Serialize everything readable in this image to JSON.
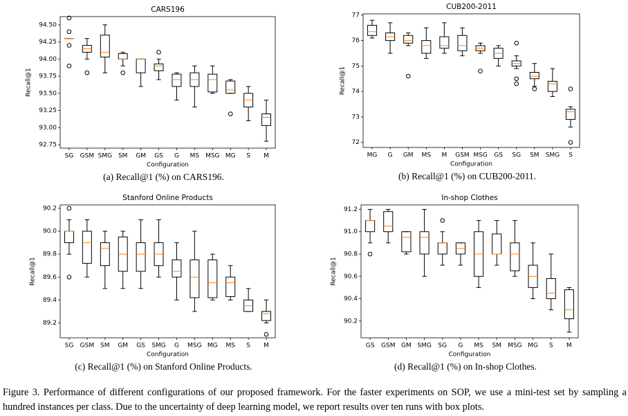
{
  "chart_data": [
    {
      "type": "box",
      "title": "CARS196",
      "ylabel": "Recall@1",
      "xlabel": "Configuration",
      "caption": "(a) Recall@1 (%) on CARS196.",
      "box_color": "#000000",
      "median_color": "#ff7f0e",
      "ylim": [
        92.7,
        94.62
      ],
      "yticks": [
        92.75,
        {
          "value": 93,
          "label": "93.00"
        },
        93.25,
        {
          "value": 93.5,
          "label": "93.50"
        },
        93.75,
        {
          "value": 94,
          "label": "94.00"
        },
        94.25,
        {
          "value": 94.5,
          "label": "94.50"
        }
      ],
      "categories": [
        "SG",
        "GSM",
        "SMG",
        "SM",
        "GM",
        "GS",
        "G",
        "MS",
        "MSG",
        "MG",
        "S",
        "M"
      ],
      "boxes": [
        {
          "whislo": 94.3,
          "q1": 94.3,
          "med": 94.3,
          "q3": 94.3,
          "whishi": 94.3,
          "fliers": [
            94.6,
            94.4,
            94.2,
            93.9
          ]
        },
        {
          "whislo": 94.0,
          "q1": 94.1,
          "med": 94.15,
          "q3": 94.2,
          "whishi": 94.3,
          "fliers": [
            93.8
          ]
        },
        {
          "whislo": 93.8,
          "q1": 94.03,
          "med": 94.1,
          "q3": 94.35,
          "whishi": 94.5,
          "fliers": []
        },
        {
          "whislo": 93.9,
          "q1": 94.0,
          "med": 94.0,
          "q3": 94.08,
          "whishi": 94.1,
          "fliers": [
            93.8
          ]
        },
        {
          "whislo": 93.6,
          "q1": 93.8,
          "med": 94.0,
          "q3": 94.0,
          "whishi": 94.0,
          "fliers": []
        },
        {
          "whislo": 93.7,
          "q1": 93.83,
          "med": 93.9,
          "q3": 93.93,
          "whishi": 94.0,
          "fliers": [
            94.1
          ]
        },
        {
          "whislo": 93.4,
          "q1": 93.6,
          "med": 93.7,
          "q3": 93.78,
          "whishi": 93.8,
          "fliers": []
        },
        {
          "whislo": 93.3,
          "q1": 93.6,
          "med": 93.7,
          "q3": 93.8,
          "whishi": 93.9,
          "fliers": []
        },
        {
          "whislo": 93.5,
          "q1": 93.52,
          "med": 93.7,
          "q3": 93.78,
          "whishi": 93.9,
          "fliers": []
        },
        {
          "whislo": 93.5,
          "q1": 93.5,
          "med": 93.55,
          "q3": 93.68,
          "whishi": 93.7,
          "fliers": [
            93.2
          ]
        },
        {
          "whislo": 93.1,
          "q1": 93.3,
          "med": 93.4,
          "q3": 93.5,
          "whishi": 93.6,
          "fliers": []
        },
        {
          "whislo": 92.8,
          "q1": 93.03,
          "med": 93.15,
          "q3": 93.2,
          "whishi": 93.4,
          "fliers": []
        }
      ]
    },
    {
      "type": "box",
      "title": "CUB200-2011",
      "ylabel": "Recall@1",
      "xlabel": "Configuration",
      "caption": "(b) Recall@1 (%) on CUB200-2011.",
      "box_color": "#000000",
      "median_color": "#ff7f0e",
      "ylim": [
        71.8,
        77.05
      ],
      "yticks": [
        72,
        73,
        74,
        75,
        76,
        77
      ],
      "categories": [
        "MG",
        "G",
        "GM",
        "MS",
        "M",
        "GSM",
        "MSG",
        "GS",
        "SG",
        "SM",
        "SMG",
        "S"
      ],
      "boxes": [
        {
          "whislo": 76.1,
          "q1": 76.2,
          "med": 76.35,
          "q3": 76.6,
          "whishi": 76.8,
          "fliers": []
        },
        {
          "whislo": 75.5,
          "q1": 76.0,
          "med": 76.15,
          "q3": 76.3,
          "whishi": 76.7,
          "fliers": []
        },
        {
          "whislo": 75.8,
          "q1": 75.9,
          "med": 76.0,
          "q3": 76.2,
          "whishi": 76.3,
          "fliers": [
            74.6
          ]
        },
        {
          "whislo": 75.3,
          "q1": 75.5,
          "med": 75.8,
          "q3": 76.0,
          "whishi": 76.5,
          "fliers": []
        },
        {
          "whislo": 75.5,
          "q1": 75.7,
          "med": 75.8,
          "q3": 76.15,
          "whishi": 76.7,
          "fliers": []
        },
        {
          "whislo": 75.4,
          "q1": 75.6,
          "med": 75.8,
          "q3": 76.2,
          "whishi": 76.5,
          "fliers": []
        },
        {
          "whislo": 75.5,
          "q1": 75.6,
          "med": 75.7,
          "q3": 75.8,
          "whishi": 75.9,
          "fliers": [
            74.8
          ]
        },
        {
          "whislo": 75.0,
          "q1": 75.3,
          "med": 75.5,
          "q3": 75.7,
          "whishi": 75.8,
          "fliers": []
        },
        {
          "whislo": 74.9,
          "q1": 75.0,
          "med": 75.1,
          "q3": 75.2,
          "whishi": 75.4,
          "fliers": [
            75.9,
            74.5,
            74.3
          ]
        },
        {
          "whislo": 74.2,
          "q1": 74.5,
          "med": 74.6,
          "q3": 74.75,
          "whishi": 75.1,
          "fliers": [
            74.1
          ]
        },
        {
          "whislo": 73.8,
          "q1": 74.0,
          "med": 74.3,
          "q3": 74.4,
          "whishi": 74.9,
          "fliers": []
        },
        {
          "whislo": 72.6,
          "q1": 72.9,
          "med": 73.2,
          "q3": 73.3,
          "whishi": 73.4,
          "fliers": [
            74.1,
            72.0
          ]
        }
      ]
    },
    {
      "type": "box",
      "title": "Stanford Online Products",
      "ylabel": "Recall@1",
      "xlabel": "Configuration",
      "caption": "(c) Recall@1 (%) on Stanford Online Products.",
      "box_color": "#000000",
      "median_color": "#ff7f0e",
      "ylim": [
        89.07,
        90.23
      ],
      "yticks": [
        89.2,
        89.4,
        89.6,
        89.8,
        {
          "value": 90,
          "label": "90.0"
        },
        90.2
      ],
      "categories": [
        "SG",
        "GSM",
        "SM",
        "GM",
        "GS",
        "SMG",
        "G",
        "MSG",
        "MG",
        "MS",
        "S",
        "M"
      ],
      "boxes": [
        {
          "whislo": 89.8,
          "q1": 89.9,
          "med": 90.0,
          "q3": 90.0,
          "whishi": 90.1,
          "fliers": [
            90.2,
            89.6
          ]
        },
        {
          "whislo": 89.6,
          "q1": 89.72,
          "med": 89.9,
          "q3": 90.0,
          "whishi": 90.1,
          "fliers": []
        },
        {
          "whislo": 89.5,
          "q1": 89.7,
          "med": 89.85,
          "q3": 89.9,
          "whishi": 90.0,
          "fliers": []
        },
        {
          "whislo": 89.5,
          "q1": 89.65,
          "med": 89.8,
          "q3": 89.95,
          "whishi": 90.0,
          "fliers": []
        },
        {
          "whislo": 89.5,
          "q1": 89.65,
          "med": 89.8,
          "q3": 89.9,
          "whishi": 90.1,
          "fliers": []
        },
        {
          "whislo": 89.6,
          "q1": 89.7,
          "med": 89.8,
          "q3": 89.9,
          "whishi": 90.1,
          "fliers": []
        },
        {
          "whislo": 89.4,
          "q1": 89.6,
          "med": 89.65,
          "q3": 89.75,
          "whishi": 89.9,
          "fliers": []
        },
        {
          "whislo": 89.3,
          "q1": 89.42,
          "med": 89.6,
          "q3": 89.75,
          "whishi": 90.0,
          "fliers": []
        },
        {
          "whislo": 89.4,
          "q1": 89.42,
          "med": 89.55,
          "q3": 89.75,
          "whishi": 89.8,
          "fliers": []
        },
        {
          "whislo": 89.4,
          "q1": 89.43,
          "med": 89.55,
          "q3": 89.6,
          "whishi": 89.7,
          "fliers": []
        },
        {
          "whislo": 89.3,
          "q1": 89.3,
          "med": 89.35,
          "q3": 89.4,
          "whishi": 89.5,
          "fliers": []
        },
        {
          "whislo": 89.2,
          "q1": 89.22,
          "med": 89.28,
          "q3": 89.3,
          "whishi": 89.4,
          "fliers": [
            89.1
          ]
        }
      ]
    },
    {
      "type": "box",
      "title": "In-shop Clothes",
      "ylabel": "Recall@1",
      "xlabel": "Configuration",
      "caption": "(d) Recall@1 (%) on In-shop Clothes.",
      "box_color": "#000000",
      "median_color": "#ff7f0e",
      "ylim": [
        90.05,
        91.24
      ],
      "yticks": [
        90.2,
        90.4,
        90.6,
        90.8,
        {
          "value": 91,
          "label": "91.0"
        },
        91.2
      ],
      "categories": [
        "GS",
        "GSM",
        "GM",
        "SMG",
        "SG",
        "G",
        "MS",
        "SM",
        "MSG",
        "MG",
        "S",
        "M"
      ],
      "boxes": [
        {
          "whislo": 90.9,
          "q1": 91.0,
          "med": 91.1,
          "q3": 91.1,
          "whishi": 91.2,
          "fliers": [
            90.8
          ]
        },
        {
          "whislo": 90.9,
          "q1": 91.0,
          "med": 91.05,
          "q3": 91.18,
          "whishi": 91.2,
          "fliers": []
        },
        {
          "whislo": 90.8,
          "q1": 90.82,
          "med": 90.95,
          "q3": 91.0,
          "whishi": 91.0,
          "fliers": []
        },
        {
          "whislo": 90.6,
          "q1": 90.8,
          "med": 90.95,
          "q3": 91.0,
          "whishi": 91.2,
          "fliers": []
        },
        {
          "whislo": 90.7,
          "q1": 90.8,
          "med": 90.9,
          "q3": 90.9,
          "whishi": 91.0,
          "fliers": [
            91.1
          ]
        },
        {
          "whislo": 90.7,
          "q1": 90.8,
          "med": 90.85,
          "q3": 90.9,
          "whishi": 90.9,
          "fliers": []
        },
        {
          "whislo": 90.5,
          "q1": 90.6,
          "med": 90.8,
          "q3": 91.0,
          "whishi": 91.1,
          "fliers": []
        },
        {
          "whislo": 90.7,
          "q1": 90.8,
          "med": 90.8,
          "q3": 90.98,
          "whishi": 91.1,
          "fliers": []
        },
        {
          "whislo": 90.6,
          "q1": 90.65,
          "med": 90.8,
          "q3": 90.9,
          "whishi": 91.1,
          "fliers": []
        },
        {
          "whislo": 90.4,
          "q1": 90.5,
          "med": 90.6,
          "q3": 90.7,
          "whishi": 90.9,
          "fliers": []
        },
        {
          "whislo": 90.3,
          "q1": 90.4,
          "med": 90.45,
          "q3": 90.58,
          "whishi": 90.8,
          "fliers": []
        },
        {
          "whislo": 90.1,
          "q1": 90.22,
          "med": 90.3,
          "q3": 90.48,
          "whishi": 90.5,
          "fliers": []
        }
      ]
    }
  ],
  "figure_caption": "Figure 3. Performance of different configurations of our proposed framework. For the faster experiments on SOP, we use a mini-test set by sampling a hundred instances per class. Due to the uncertainty of deep learning model, we report results over ten runs with box plots."
}
